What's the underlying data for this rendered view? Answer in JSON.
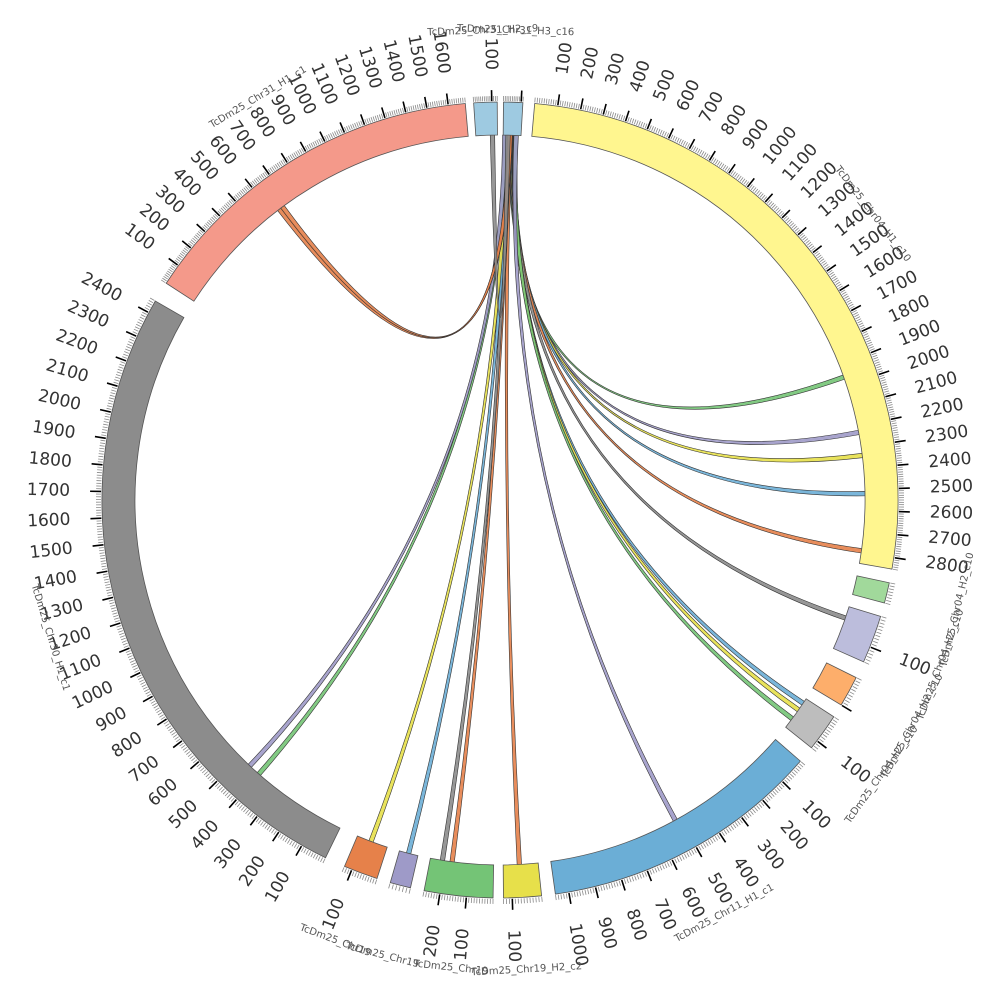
{
  "chromosomes": [
    {
      "id": "c16",
      "label": "TcDm25_Chr31_H3_c16",
      "length": 110,
      "color": "#9ecae1",
      "tick_labels": []
    },
    {
      "id": "c10",
      "label": "TcDm25_Chr04_H1_c10",
      "length": 2850,
      "color": "#fff68f",
      "tick_labels": [
        "100",
        "200",
        "300",
        "400",
        "500",
        "600",
        "700",
        "800",
        "900",
        "1000",
        "1100",
        "1200",
        "1300",
        "1400",
        "1500",
        "1600",
        "1700",
        "1800",
        "1900",
        "2000",
        "2100",
        "2200",
        "2300",
        "2400",
        "2500",
        "2600",
        "2700",
        "2800"
      ]
    },
    {
      "id": "c1a",
      "label": "TcDm25_Chr04_H2_c10",
      "length": 70,
      "color": "#a1d99b",
      "tick_labels": []
    },
    {
      "id": "c1b",
      "label": "TcDm25_Chr04_H2_c10",
      "length": 150,
      "color": "#bcbddc",
      "tick_labels": [
        "100"
      ]
    },
    {
      "id": "c1c",
      "label": "TcDm25_Chr04_H2_c10",
      "length": 100,
      "color": "#fdae6b",
      "tick_labels": []
    },
    {
      "id": "c1d",
      "label": "TcDm25_Chr04_H2_c10",
      "length": 130,
      "color": "#bdbdbd",
      "tick_labels": [
        "100"
      ]
    },
    {
      "id": "c11",
      "label": "TcDm25_Chr11_H1_c1",
      "length": 1050,
      "color": "#6baed6",
      "tick_labels": [
        "100",
        "200",
        "300",
        "400",
        "500",
        "600",
        "700",
        "800",
        "900",
        "1000"
      ]
    },
    {
      "id": "c2",
      "label": "TcDm25_Chr19_H2_c2",
      "length": 130,
      "color": "#e7e04a",
      "tick_labels": [
        "100"
      ]
    },
    {
      "id": "c3",
      "label": "TcDm25_Chr19",
      "length": 260,
      "color": "#74c476",
      "tick_labels": [
        "100",
        "200"
      ]
    },
    {
      "id": "c4",
      "label": "TcDm25_Chr19",
      "length": 60,
      "color": "#9e9ac8",
      "tick_labels": []
    },
    {
      "id": "c5",
      "label": "TcDm25_Chr19",
      "length": 130,
      "color": "#e6814a",
      "tick_labels": [
        "100"
      ]
    },
    {
      "id": "c30",
      "label": "TcDm25_Chr30_H1_c1",
      "length": 2450,
      "color": "#8c8c8c",
      "tick_labels": [
        "100",
        "200",
        "300",
        "400",
        "500",
        "600",
        "700",
        "800",
        "900",
        "1000",
        "1100",
        "1200",
        "1300",
        "1400",
        "1500",
        "1600",
        "1700",
        "1800",
        "1900",
        "2000",
        "2100",
        "2200",
        "2300",
        "2400"
      ]
    },
    {
      "id": "c31",
      "label": "TcDm25_Chr31_H1_c1",
      "length": 1680,
      "color": "#f4998a",
      "tick_labels": [
        "100",
        "200",
        "300",
        "400",
        "500",
        "600",
        "700",
        "800",
        "900",
        "1000",
        "1100",
        "1200",
        "1300",
        "1400",
        "1500",
        "1600"
      ]
    },
    {
      "id": "c16b",
      "label": "TcDm25_Chr31_H2_c9",
      "length": 130,
      "color": "#9ecae1",
      "tick_labels": [
        "100"
      ]
    }
  ],
  "links": [
    {
      "from": "c16",
      "from_pos": 50,
      "to": "c10",
      "to_pos": 1960,
      "color": "#74c476"
    },
    {
      "from": "c16",
      "from_pos": 55,
      "to": "c10",
      "to_pos": 2230,
      "color": "#9e9ac8"
    },
    {
      "from": "c16",
      "from_pos": 60,
      "to": "c10",
      "to_pos": 2340,
      "color": "#e7e04a"
    },
    {
      "from": "c16",
      "from_pos": 65,
      "to": "c10",
      "to_pos": 2520,
      "color": "#6baed6"
    },
    {
      "from": "c16",
      "from_pos": 70,
      "to": "c10",
      "to_pos": 2790,
      "color": "#e6814a"
    },
    {
      "from": "c16",
      "from_pos": 72,
      "to": "c1b",
      "to_pos": 40,
      "color": "#8c8c8c"
    },
    {
      "from": "c16",
      "from_pos": 74,
      "to": "c1d",
      "to_pos": 20,
      "color": "#6baed6"
    },
    {
      "from": "c16",
      "from_pos": 76,
      "to": "c1d",
      "to_pos": 50,
      "color": "#e7e04a"
    },
    {
      "from": "c16",
      "from_pos": 78,
      "to": "c1d",
      "to_pos": 90,
      "color": "#74c476"
    },
    {
      "from": "c16",
      "from_pos": 80,
      "to": "c11",
      "to_pos": 520,
      "color": "#9e9ac8"
    },
    {
      "from": "c16",
      "from_pos": 40,
      "to": "c2",
      "to_pos": 70,
      "color": "#e6814a"
    },
    {
      "from": "c16",
      "from_pos": 35,
      "to": "c3",
      "to_pos": 170,
      "color": "#e6814a"
    },
    {
      "from": "c16",
      "from_pos": 30,
      "to": "c3",
      "to_pos": 210,
      "color": "#8c8c8c"
    },
    {
      "from": "c16",
      "from_pos": 25,
      "to": "c4",
      "to_pos": 30,
      "color": "#6baed6"
    },
    {
      "from": "c16",
      "from_pos": 20,
      "to": "c5",
      "to_pos": 70,
      "color": "#e7e04a"
    },
    {
      "from": "c16",
      "from_pos": 15,
      "to": "c30",
      "to_pos": 400,
      "color": "#74c476"
    },
    {
      "from": "c16",
      "from_pos": 10,
      "to": "c30",
      "to_pos": 450,
      "color": "#9e9ac8"
    },
    {
      "from": "c16",
      "from_pos": 45,
      "to": "c31",
      "to_pos": 640,
      "color": "#e6814a"
    },
    {
      "from": "c16",
      "from_pos": 42,
      "to": "c31",
      "to_pos": 660,
      "color": "#e6814a"
    },
    {
      "from": "c16b",
      "from_pos": 100,
      "to": "c16",
      "to_pos": 30,
      "color": "#8c8c8c"
    }
  ]
}
